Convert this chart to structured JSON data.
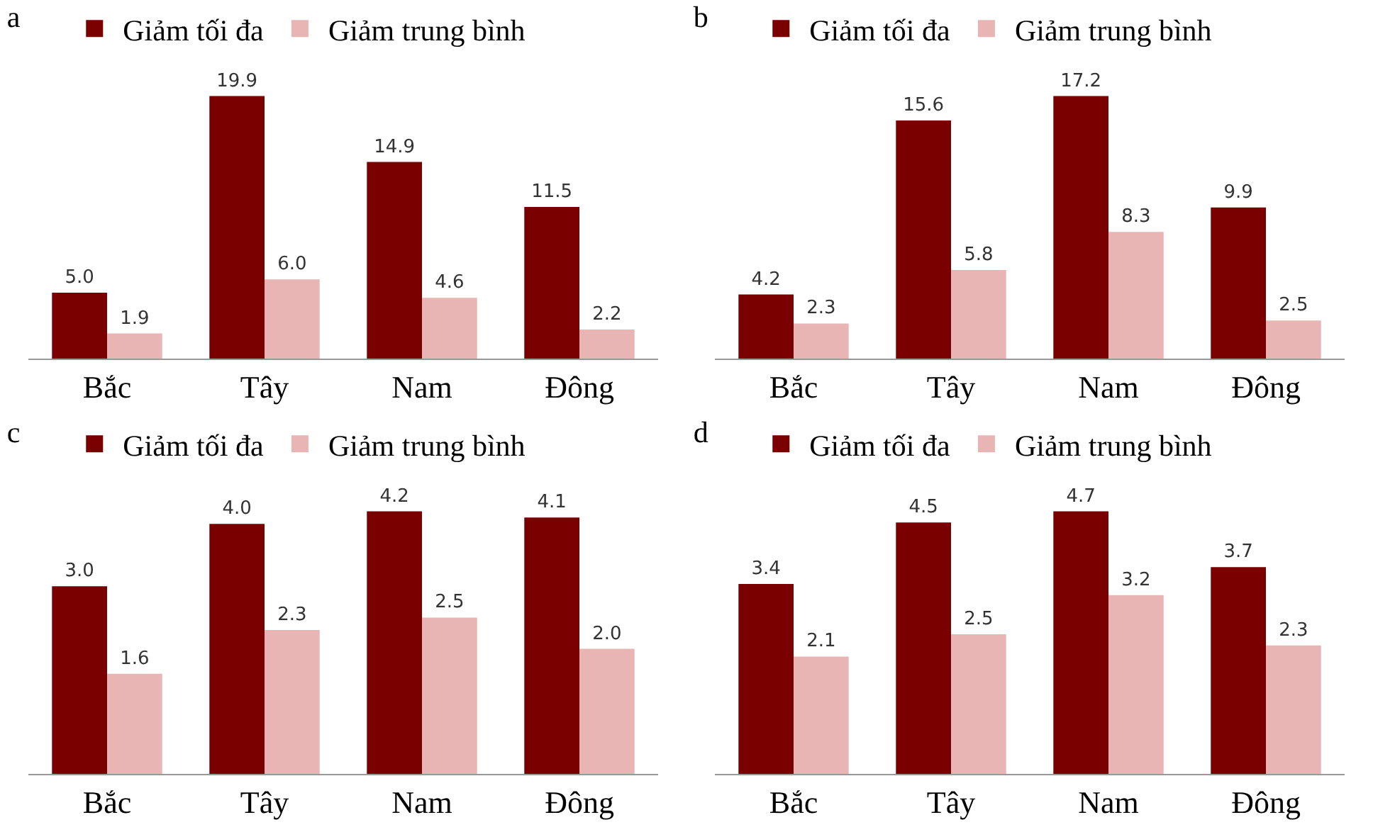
{
  "chart_data": [
    {
      "type": "bar",
      "title": "a",
      "categories": [
        "Bắc",
        "Tây",
        "Nam",
        "Đông"
      ],
      "legend": "top",
      "series": [
        {
          "name": "Giảm tối đa",
          "color": "#7a0000",
          "values": [
            5.0,
            19.9,
            14.9,
            11.5
          ],
          "value_labels": [
            "5.0",
            "19.9",
            "14.9",
            "11.5"
          ]
        },
        {
          "name": "Giảm trung bình",
          "color": "#e8b4b4",
          "values": [
            1.9,
            6.0,
            4.6,
            2.2
          ],
          "value_labels": [
            "1.9",
            "6.0",
            "4.6",
            "2.2"
          ]
        }
      ]
    },
    {
      "type": "bar",
      "title": "b",
      "categories": [
        "Bắc",
        "Tây",
        "Nam",
        "Đông"
      ],
      "legend": "top",
      "series": [
        {
          "name": "Giảm tối đa",
          "color": "#7a0000",
          "values": [
            4.2,
            15.6,
            17.2,
            9.9
          ],
          "value_labels": [
            "4.2",
            "15.6",
            "17.2",
            "9.9"
          ]
        },
        {
          "name": "Giảm trung bình",
          "color": "#e8b4b4",
          "values": [
            2.3,
            5.8,
            8.3,
            2.5
          ],
          "value_labels": [
            "2.3",
            "5.8",
            "8.3",
            "2.5"
          ]
        }
      ]
    },
    {
      "type": "bar",
      "title": "c",
      "categories": [
        "Bắc",
        "Tây",
        "Nam",
        "Đông"
      ],
      "legend": "top",
      "series": [
        {
          "name": "Giảm tối đa",
          "color": "#7a0000",
          "values": [
            3.0,
            4.0,
            4.2,
            4.1
          ],
          "value_labels": [
            "3.0",
            "4.0",
            "4.2",
            "4.1"
          ]
        },
        {
          "name": "Giảm trung bình",
          "color": "#e8b4b4",
          "values": [
            1.6,
            2.3,
            2.5,
            2.0
          ],
          "value_labels": [
            "1.6",
            "2.3",
            "2.5",
            "2.0"
          ]
        }
      ]
    },
    {
      "type": "bar",
      "title": "d",
      "categories": [
        "Bắc",
        "Tây",
        "Nam",
        "Đông"
      ],
      "legend": "top",
      "series": [
        {
          "name": "Giảm tối đa",
          "color": "#7a0000",
          "values": [
            3.4,
            4.5,
            4.7,
            3.7
          ],
          "value_labels": [
            "3.4",
            "4.5",
            "4.7",
            "3.7"
          ]
        },
        {
          "name": "Giảm trung bình",
          "color": "#e8b4b4",
          "values": [
            2.1,
            2.5,
            3.2,
            2.3
          ],
          "value_labels": [
            "2.1",
            "2.5",
            "3.2",
            "2.3"
          ]
        }
      ]
    }
  ]
}
